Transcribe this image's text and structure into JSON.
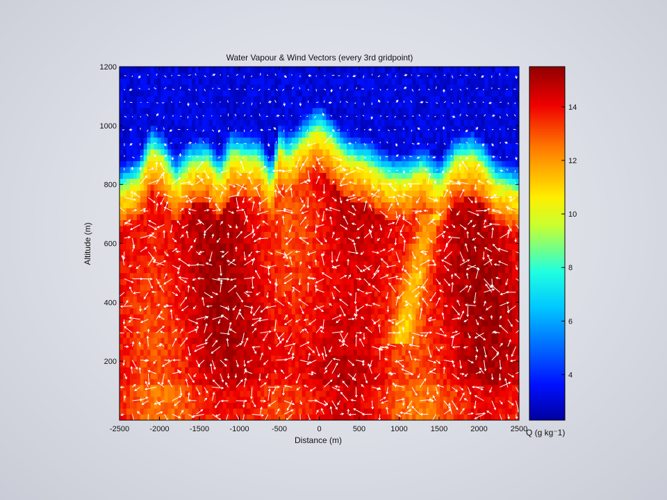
{
  "chart_data": {
    "type": "heatmap",
    "title": "Water Vapour & Wind Vectors (every 3rd gridpoint)",
    "xlabel": "Distance (m)",
    "ylabel": "Altitude (m)",
    "xlim": [
      -2500,
      2500
    ],
    "ylim": [
      0,
      1200
    ],
    "x_ticks": [
      -2500,
      -2000,
      -1500,
      -1000,
      -500,
      0,
      500,
      1000,
      1500,
      2000,
      2500
    ],
    "y_ticks": [
      200,
      400,
      600,
      800,
      1000,
      1200
    ],
    "colorbar": {
      "label": "Q (g kg⁻1)",
      "range": [
        2.3,
        15.5
      ],
      "ticks": [
        4,
        6,
        8,
        10,
        12,
        14
      ],
      "colormap": "jet"
    },
    "moist_layer_top": {
      "x": [
        -2500,
        -2250,
        -2100,
        -1950,
        -1800,
        -1600,
        -1400,
        -1250,
        -1100,
        -900,
        -750,
        -600,
        -500,
        -400,
        -250,
        -100,
        0,
        150,
        300,
        450,
        600,
        750,
        900,
        1100,
        1300,
        1500,
        1700,
        1900,
        2050,
        2200,
        2350,
        2500
      ],
      "y": [
        760,
        800,
        900,
        870,
        790,
        850,
        860,
        800,
        880,
        870,
        860,
        780,
        900,
        870,
        910,
        950,
        970,
        930,
        880,
        860,
        850,
        820,
        800,
        800,
        830,
        780,
        860,
        880,
        850,
        790,
        770,
        760
      ]
    },
    "wind_vectors": "every 3rd gridpoint"
  },
  "colors": {
    "axes_border": "#000000",
    "vector": "#ffffff"
  }
}
